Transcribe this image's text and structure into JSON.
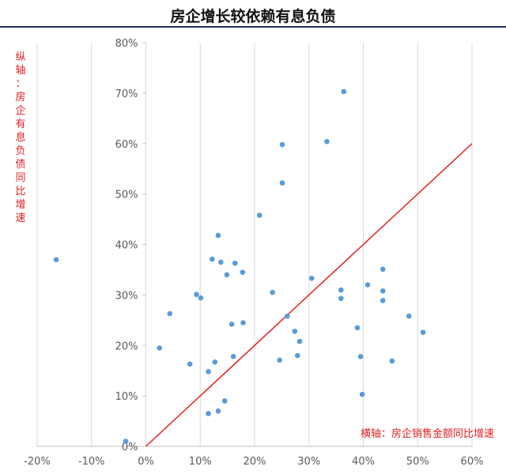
{
  "title": "房企增长较依赖有息负债",
  "y_annotation": "纵轴：房企有息负债同比增速",
  "x_annotation": "横轴：房企销售金额同比增速",
  "colors": {
    "point": "#5b9bd5",
    "line": "#e02020",
    "grid": "#d9d9d9",
    "annotation": "#e02020"
  },
  "chart_data": {
    "type": "scatter",
    "title": "房企增长较依赖有息负债",
    "xlabel": "横轴：房企销售金额同比增速",
    "ylabel": "纵轴：房企有息负债同比增速",
    "xlim": [
      -20,
      60
    ],
    "ylim": [
      0,
      80
    ],
    "x_ticks": [
      -20,
      -10,
      0,
      10,
      20,
      30,
      40,
      50,
      60
    ],
    "y_ticks": [
      0,
      10,
      20,
      30,
      40,
      50,
      60,
      70,
      80
    ],
    "tick_suffix": "%",
    "grid": "vertical",
    "reference_line": {
      "from": [
        0,
        0
      ],
      "to": [
        60,
        60
      ]
    },
    "points": [
      [
        -16.5,
        37.0
      ],
      [
        -3.7,
        1.0
      ],
      [
        2.5,
        19.5
      ],
      [
        4.4,
        26.3
      ],
      [
        8.1,
        16.3
      ],
      [
        9.3,
        30.1
      ],
      [
        10.1,
        29.4
      ],
      [
        11.5,
        14.8
      ],
      [
        11.5,
        6.5
      ],
      [
        12.2,
        37.1
      ],
      [
        12.7,
        16.7
      ],
      [
        13.3,
        41.8
      ],
      [
        13.3,
        7.0
      ],
      [
        13.8,
        36.5
      ],
      [
        14.5,
        9.0
      ],
      [
        14.9,
        34.0
      ],
      [
        15.8,
        24.2
      ],
      [
        16.1,
        17.8
      ],
      [
        16.4,
        36.3
      ],
      [
        17.8,
        34.5
      ],
      [
        17.9,
        24.5
      ],
      [
        20.9,
        45.8
      ],
      [
        23.3,
        30.5
      ],
      [
        24.6,
        17.1
      ],
      [
        25.1,
        59.8
      ],
      [
        25.1,
        52.2
      ],
      [
        26.0,
        25.8
      ],
      [
        27.4,
        22.8
      ],
      [
        27.9,
        18.0
      ],
      [
        28.3,
        20.8
      ],
      [
        30.5,
        33.3
      ],
      [
        33.3,
        60.4
      ],
      [
        35.9,
        31.0
      ],
      [
        35.9,
        29.3
      ],
      [
        36.4,
        70.3
      ],
      [
        38.9,
        23.5
      ],
      [
        39.5,
        17.8
      ],
      [
        39.8,
        10.3
      ],
      [
        40.8,
        32.0
      ],
      [
        43.6,
        35.1
      ],
      [
        43.6,
        30.8
      ],
      [
        43.6,
        28.9
      ],
      [
        45.3,
        16.9
      ],
      [
        48.4,
        25.8
      ],
      [
        51.0,
        22.6
      ]
    ]
  }
}
